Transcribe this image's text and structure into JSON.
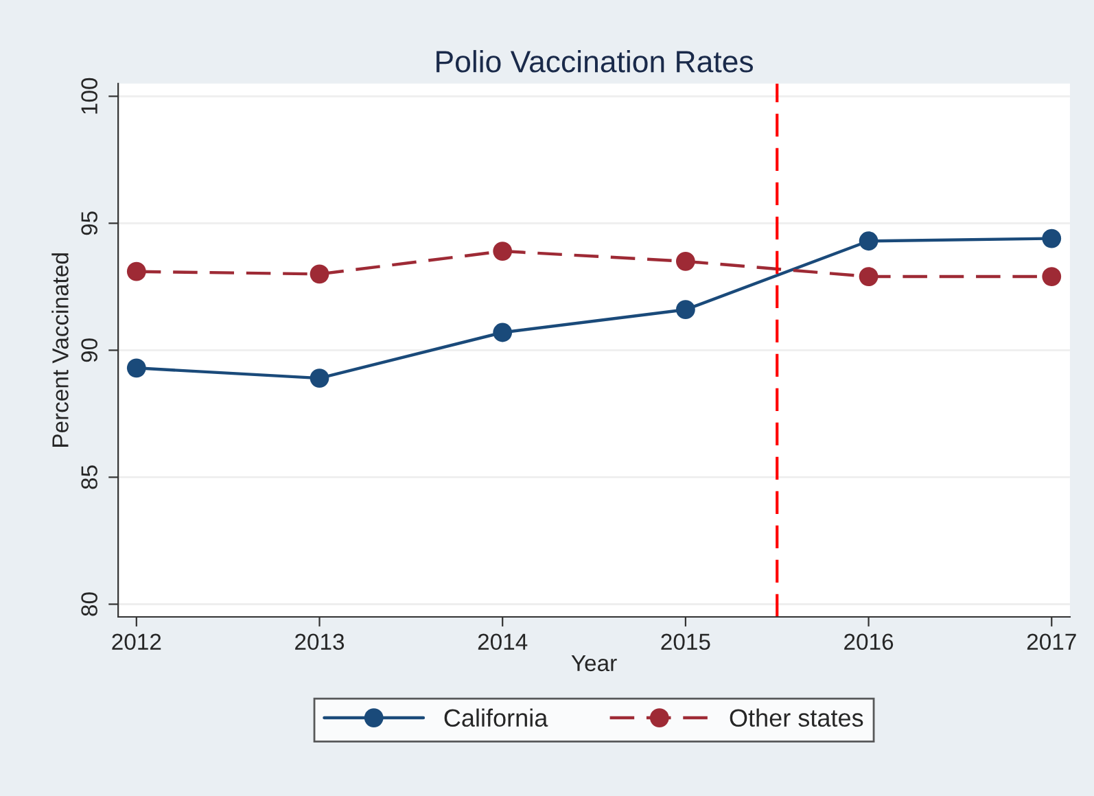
{
  "chart_data": {
    "type": "line",
    "title": "Polio Vaccination Rates",
    "xlabel": "Year",
    "ylabel": "Percent Vaccinated",
    "x": [
      2012,
      2013,
      2014,
      2015,
      2016,
      2017
    ],
    "series": [
      {
        "name": "California",
        "color": "#1a4a7a",
        "values": [
          89.3,
          88.9,
          90.7,
          91.6,
          94.3,
          94.4
        ],
        "line_style": "solid"
      },
      {
        "name": "Other states",
        "color": "#9e2a35",
        "values": [
          93.1,
          93.0,
          93.9,
          93.5,
          92.9,
          92.9
        ],
        "line_style": "dashed"
      }
    ],
    "xlim": [
      2011.9,
      2017.1
    ],
    "xticks": [
      2012,
      2013,
      2014,
      2015,
      2016,
      2017
    ],
    "ylim": [
      79.5,
      100.5
    ],
    "yticks": [
      80,
      85,
      90,
      95,
      100
    ],
    "ref_lines": [
      {
        "axis": "x",
        "value": 2015.5,
        "color": "#ff0000",
        "line_style": "dashed"
      }
    ],
    "grid": "y",
    "legend": "bottom",
    "marker": "circle"
  }
}
